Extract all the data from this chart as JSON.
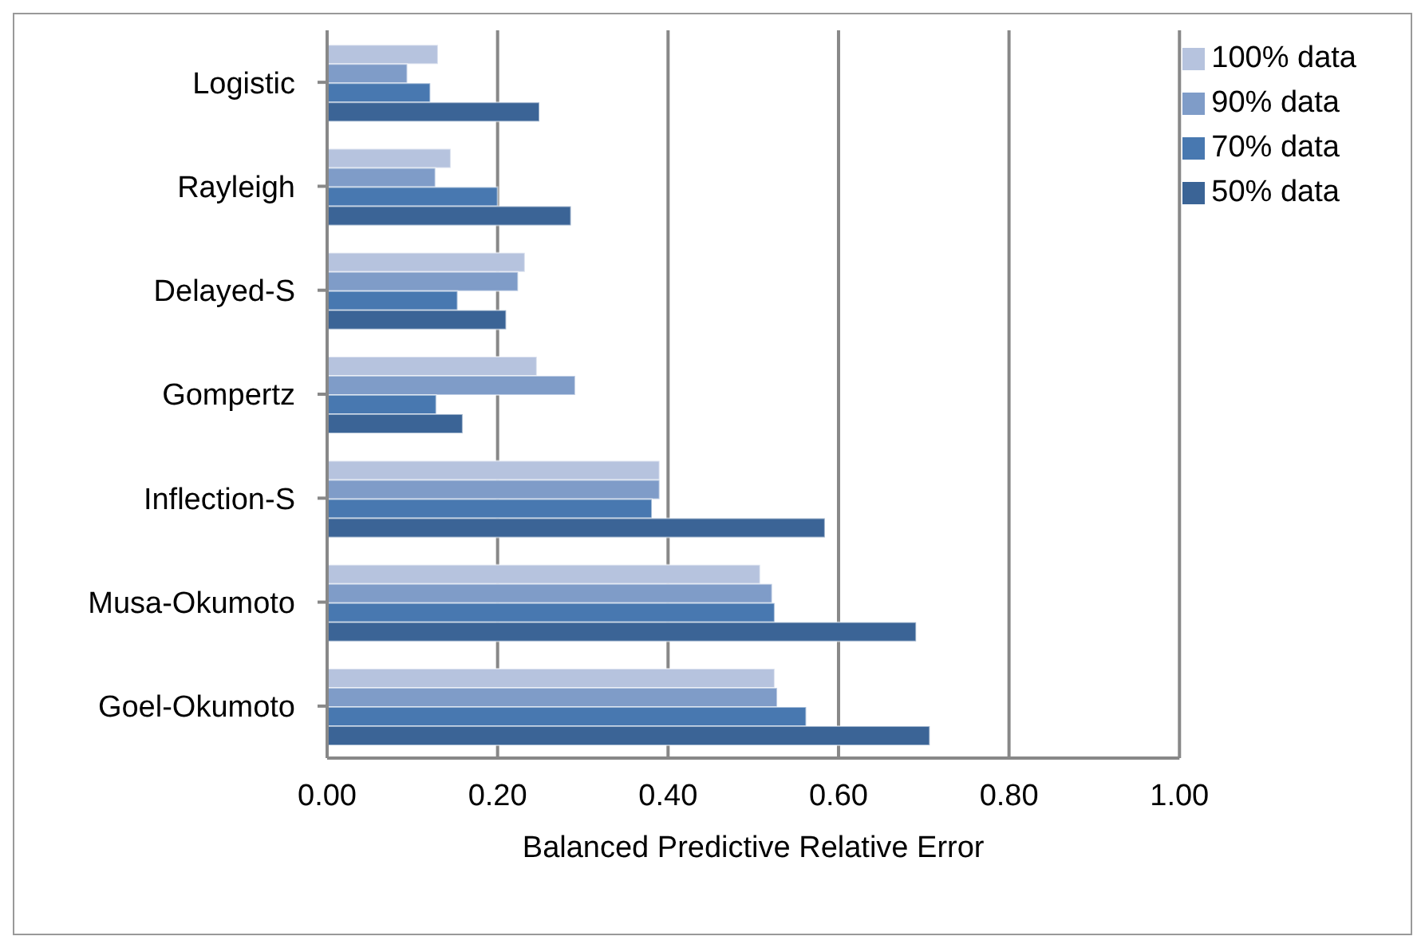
{
  "chart_data": {
    "type": "bar",
    "orientation": "horizontal",
    "xlabel": "Balanced Predictive Relative Error",
    "categories": [
      "Logistic",
      "Rayleigh",
      "Delayed-S",
      "Gompertz",
      "Inflection-S",
      "Musa-Okumoto",
      "Goel-Okumoto"
    ],
    "series": [
      {
        "name": "100% data",
        "color": "#b6c3de",
        "values": [
          0.13,
          0.145,
          0.232,
          0.246,
          0.39,
          0.508,
          0.525
        ]
      },
      {
        "name": "90% data",
        "color": "#7f9cc8",
        "values": [
          0.094,
          0.127,
          0.224,
          0.291,
          0.39,
          0.522,
          0.528
        ]
      },
      {
        "name": "70% data",
        "color": "#4878b0",
        "values": [
          0.121,
          0.2,
          0.153,
          0.128,
          0.381,
          0.525,
          0.562
        ]
      },
      {
        "name": "50% data",
        "color": "#3b6496",
        "values": [
          0.249,
          0.286,
          0.21,
          0.159,
          0.584,
          0.691,
          0.707
        ]
      }
    ],
    "xlim": [
      0,
      1
    ],
    "xticks": [
      {
        "value": 0,
        "label": "0.00"
      },
      {
        "value": 0.2,
        "label": "0.20"
      },
      {
        "value": 0.4,
        "label": "0.40"
      },
      {
        "value": 0.6,
        "label": "0.60"
      },
      {
        "value": 0.8,
        "label": "0.80"
      },
      {
        "value": 1,
        "label": "1.00"
      }
    ],
    "grid": "x",
    "legend": "top right"
  }
}
